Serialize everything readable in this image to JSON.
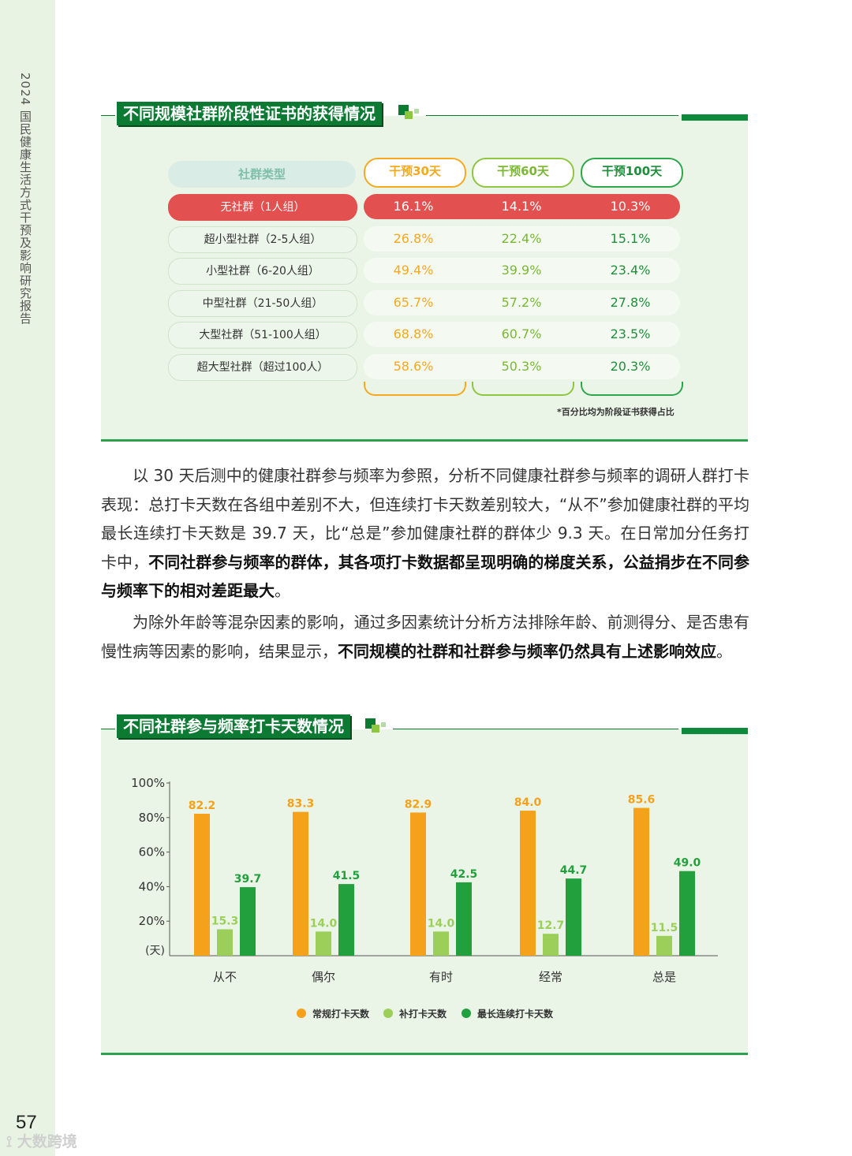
{
  "sidebar": {
    "title": "2024 国民健康生活方式干预及影响研究报告",
    "page_number": "57",
    "watermark": "大数跨境"
  },
  "table_section": {
    "heading": "不同规模社群阶段性证书的获得情况",
    "columns": [
      "社群类型",
      "干预30天",
      "干预60天",
      "干预100天"
    ],
    "rows": [
      {
        "label": "无社群（1人组）",
        "values": [
          "16.1%",
          "14.1%",
          "10.3%"
        ],
        "highlight": true
      },
      {
        "label": "超小型社群（2-5人组）",
        "values": [
          "26.8%",
          "22.4%",
          "15.1%"
        ],
        "highlight": false
      },
      {
        "label": "小型社群（6-20人组）",
        "values": [
          "49.4%",
          "39.9%",
          "23.4%"
        ],
        "highlight": false
      },
      {
        "label": "中型社群（21-50人组）",
        "values": [
          "65.7%",
          "57.2%",
          "27.8%"
        ],
        "highlight": false
      },
      {
        "label": "大型社群（51-100人组）",
        "values": [
          "68.8%",
          "60.7%",
          "23.5%"
        ],
        "highlight": false
      },
      {
        "label": "超大型社群（超过100人）",
        "values": [
          "58.6%",
          "50.3%",
          "20.3%"
        ],
        "highlight": false
      }
    ],
    "footnote": "*百分比均为阶段证书获得占比"
  },
  "body_text": {
    "p1_a": "以 30 天后测中的健康社群参与频率为参照，分析不同健康社群参与频率的调研人群打卡表现：总打卡天数在各组中差别不大，但连续打卡天数差别较大，“从不”参加健康社群的平均最长连续打卡天数是 39.7 天，比“总是”参加健康社群的群体少 9.3 天。在日常加分任务打卡中，",
    "p1_b": "不同社群参与频率的群体，其各项打卡数据都呈现明确的梯度关系，公益捐步在不同参与频率下的相对差距最大",
    "p1_c": "。",
    "p2_a": "为除外年龄等混杂因素的影响，通过多因素统计分析方法排除年龄、前测得分、是否患有慢性病等因素的影响，结果显示，",
    "p2_b": "不同规模的社群和社群参与频率仍然具有上述影响效应",
    "p2_c": "。"
  },
  "chart_section": {
    "heading": "不同社群参与频率打卡天数情况"
  },
  "chart_data": {
    "type": "bar",
    "categories": [
      "从不",
      "偶尔",
      "有时",
      "经常",
      "总是"
    ],
    "series": [
      {
        "name": "常规打卡天数",
        "color": "#f6a11b",
        "values": [
          82.2,
          83.3,
          82.9,
          84.0,
          85.6
        ],
        "labels": [
          "82.2",
          "83.3",
          "82.9",
          "84.0",
          "85.6"
        ]
      },
      {
        "name": "补打卡天数",
        "color": "#9ccf5a",
        "values": [
          15.3,
          14.0,
          14.0,
          12.7,
          11.5
        ],
        "labels": [
          "15.3",
          "14.0",
          "14.0",
          "12.7",
          "11.5"
        ]
      },
      {
        "name": "最长连续打卡天数",
        "color": "#22a03d",
        "values": [
          39.7,
          41.5,
          42.5,
          44.7,
          49.0
        ],
        "labels": [
          "39.7",
          "41.5",
          "42.5",
          "44.7",
          "49.0"
        ]
      }
    ],
    "yticks": [
      "100%",
      "80%",
      "60%",
      "40%",
      "20%"
    ],
    "ytick_values": [
      100,
      80,
      60,
      40,
      20
    ],
    "ylabel": "(天)",
    "ylim": [
      0,
      100
    ],
    "legend": "bottom-center"
  }
}
